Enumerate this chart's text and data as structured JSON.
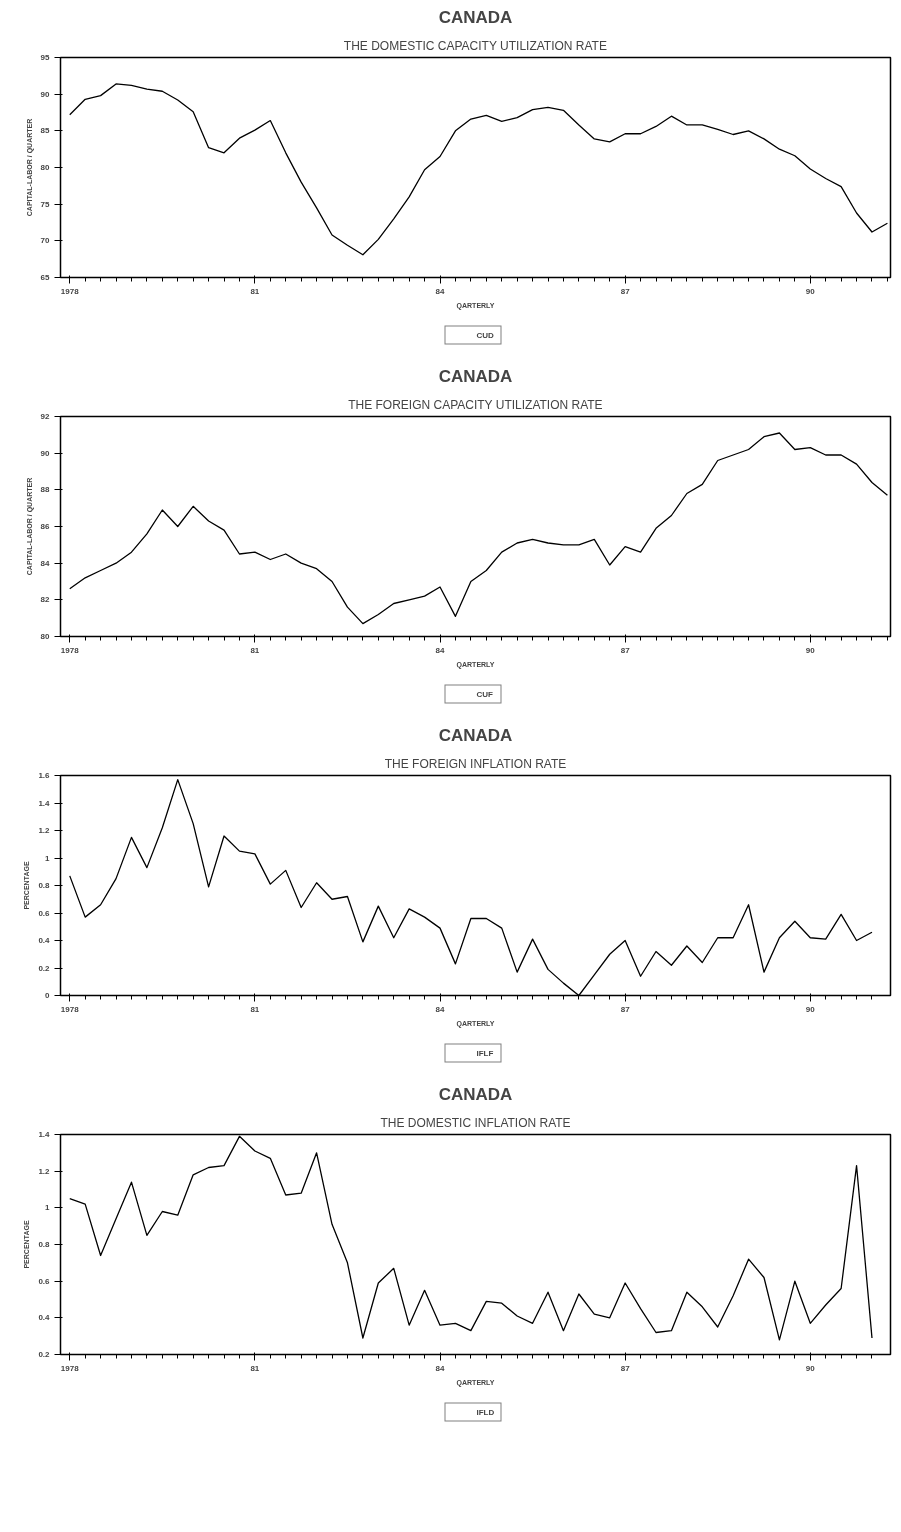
{
  "chart_data": [
    {
      "type": "line",
      "title": "CANADA",
      "subtitle": "THE DOMESTIC CAPACITY UTILIZATION RATE",
      "xlabel": "QARTERLY",
      "ylabel": "CAPITAL-LABOR / QUARTER",
      "legend": "bottom",
      "grid": false,
      "line_style": "solid",
      "marker": "none",
      "x": [
        1978,
        1978.25,
        1978.5,
        1978.75,
        1979,
        1979.25,
        1979.5,
        1979.75,
        1980,
        1980.25,
        1980.5,
        1980.75,
        1981,
        1981.25,
        1981.5,
        1981.75,
        1982,
        1982.25,
        1982.5,
        1982.75,
        1983,
        1983.25,
        1983.5,
        1983.75,
        1984,
        1984.25,
        1984.5,
        1984.75,
        1985,
        1985.25,
        1985.5,
        1985.75,
        1986,
        1986.25,
        1986.5,
        1986.75,
        1987,
        1987.25,
        1987.5,
        1987.75,
        1988,
        1988.25,
        1988.5,
        1988.75,
        1989,
        1989.25,
        1989.5,
        1989.75,
        1990,
        1990.25,
        1990.5,
        1990.75,
        1991,
        1991.25
      ],
      "xlim": [
        1977.85,
        1991.3
      ],
      "xticks": [
        {
          "value": 1978,
          "label": "1978"
        },
        {
          "value": 1981,
          "label": "81"
        },
        {
          "value": 1984,
          "label": "84"
        },
        {
          "value": 1987,
          "label": "87"
        },
        {
          "value": 1990,
          "label": "90"
        }
      ],
      "ylim": [
        65,
        95
      ],
      "yticks": [
        65,
        70,
        75,
        80,
        85,
        90,
        95
      ],
      "series": [
        {
          "name": "CUD",
          "color": "#000000",
          "values": [
            87.2,
            89.3,
            89.8,
            91.4,
            91.2,
            90.7,
            90.4,
            89.2,
            87.6,
            82.7,
            82.0,
            84.0,
            85.1,
            86.4,
            82.0,
            78.0,
            74.5,
            70.8,
            69.4,
            68.1,
            70.2,
            73.0,
            76.0,
            79.7,
            81.5,
            85.0,
            86.6,
            87.1,
            86.3,
            86.8,
            87.9,
            88.2,
            87.8,
            85.8,
            83.9,
            83.5,
            84.6,
            84.6,
            85.6,
            87.0,
            85.8,
            85.8,
            85.2,
            84.5,
            85.0,
            83.9,
            82.5,
            81.6,
            79.8,
            78.5,
            77.4,
            73.8,
            71.2,
            72.4
          ]
        }
      ]
    },
    {
      "type": "line",
      "title": "CANADA",
      "subtitle": "THE FOREIGN CAPACITY UTILIZATION RATE",
      "xlabel": "QARTERLY",
      "ylabel": "CAPITAL-LABOR / QUARTER",
      "legend": "bottom",
      "grid": false,
      "line_style": "solid",
      "marker": "none",
      "x": [
        1978,
        1978.25,
        1978.5,
        1978.75,
        1979,
        1979.25,
        1979.5,
        1979.75,
        1980,
        1980.25,
        1980.5,
        1980.75,
        1981,
        1981.25,
        1981.5,
        1981.75,
        1982,
        1982.25,
        1982.5,
        1982.75,
        1983,
        1983.25,
        1983.5,
        1983.75,
        1984,
        1984.25,
        1984.5,
        1984.75,
        1985,
        1985.25,
        1985.5,
        1985.75,
        1986,
        1986.25,
        1986.5,
        1986.75,
        1987,
        1987.25,
        1987.5,
        1987.75,
        1988,
        1988.25,
        1988.5,
        1988.75,
        1989,
        1989.25,
        1989.5,
        1989.75,
        1990,
        1990.25,
        1990.5,
        1990.75,
        1991,
        1991.25
      ],
      "xlim": [
        1977.85,
        1991.3
      ],
      "xticks": [
        {
          "value": 1978,
          "label": "1978"
        },
        {
          "value": 1981,
          "label": "81"
        },
        {
          "value": 1984,
          "label": "84"
        },
        {
          "value": 1987,
          "label": "87"
        },
        {
          "value": 1990,
          "label": "90"
        }
      ],
      "ylim": [
        80,
        92
      ],
      "yticks": [
        80,
        82,
        84,
        86,
        88,
        90,
        92
      ],
      "series": [
        {
          "name": "CUF",
          "color": "#000000",
          "values": [
            82.6,
            83.2,
            83.6,
            84.0,
            84.6,
            85.6,
            86.9,
            86.0,
            87.1,
            86.3,
            85.8,
            84.5,
            84.6,
            84.2,
            84.5,
            84.0,
            83.7,
            83.0,
            81.6,
            80.7,
            81.2,
            81.8,
            82.0,
            82.2,
            82.7,
            81.1,
            83.0,
            83.6,
            84.6,
            85.1,
            85.3,
            85.1,
            85.0,
            85.0,
            85.3,
            83.9,
            84.9,
            84.6,
            85.9,
            86.6,
            87.8,
            88.3,
            89.6,
            89.9,
            90.2,
            90.9,
            91.1,
            90.2,
            90.3,
            89.9,
            89.9,
            89.4,
            88.4,
            87.7
          ]
        }
      ]
    },
    {
      "type": "line",
      "title": "CANADA",
      "subtitle": "THE FOREIGN INFLATION RATE",
      "xlabel": "QARTERLY",
      "ylabel": "PERCENTAGE",
      "legend": "bottom",
      "grid": false,
      "line_style": "solid",
      "marker": "none",
      "x": [
        1978,
        1978.25,
        1978.5,
        1978.75,
        1979,
        1979.25,
        1979.5,
        1979.75,
        1980,
        1980.25,
        1980.5,
        1980.75,
        1981,
        1981.25,
        1981.5,
        1981.75,
        1982,
        1982.25,
        1982.5,
        1982.75,
        1983,
        1983.25,
        1983.5,
        1983.75,
        1984,
        1984.25,
        1984.5,
        1984.75,
        1985,
        1985.25,
        1985.5,
        1985.75,
        1986,
        1986.25,
        1986.5,
        1986.75,
        1987,
        1987.25,
        1987.5,
        1987.75,
        1988,
        1988.25,
        1988.5,
        1988.75,
        1989,
        1989.25,
        1989.5,
        1989.75,
        1990,
        1990.25,
        1990.5,
        1990.75,
        1991
      ],
      "xlim": [
        1977.85,
        1991.3
      ],
      "xticks": [
        {
          "value": 1978,
          "label": "1978"
        },
        {
          "value": 1981,
          "label": "81"
        },
        {
          "value": 1984,
          "label": "84"
        },
        {
          "value": 1987,
          "label": "87"
        },
        {
          "value": 1990,
          "label": "90"
        }
      ],
      "ylim": [
        0,
        1.6
      ],
      "yticks": [
        0,
        0.2,
        0.4,
        0.6,
        0.8,
        1,
        1.2,
        1.4,
        1.6
      ],
      "series": [
        {
          "name": "IFLF",
          "color": "#000000",
          "values": [
            0.87,
            0.57,
            0.66,
            0.85,
            1.15,
            0.93,
            1.22,
            1.57,
            1.25,
            0.79,
            1.16,
            1.05,
            1.03,
            0.81,
            0.91,
            0.64,
            0.82,
            0.7,
            0.72,
            0.39,
            0.65,
            0.42,
            0.63,
            0.57,
            0.49,
            0.23,
            0.56,
            0.56,
            0.49,
            0.17,
            0.41,
            0.19,
            0.09,
            0.0,
            0.15,
            0.3,
            0.4,
            0.14,
            0.32,
            0.22,
            0.36,
            0.24,
            0.42,
            0.42,
            0.66,
            0.17,
            0.42,
            0.54,
            0.42,
            0.41,
            0.59,
            0.4,
            0.46
          ]
        }
      ]
    },
    {
      "type": "line",
      "title": "CANADA",
      "subtitle": "THE DOMESTIC INFLATION RATE",
      "xlabel": "QARTERLY",
      "ylabel": "PERCENTAGE",
      "legend": "bottom",
      "grid": false,
      "line_style": "solid",
      "marker": "none",
      "x": [
        1978,
        1978.25,
        1978.5,
        1978.75,
        1979,
        1979.25,
        1979.5,
        1979.75,
        1980,
        1980.25,
        1980.5,
        1980.75,
        1981,
        1981.25,
        1981.5,
        1981.75,
        1982,
        1982.25,
        1982.5,
        1982.75,
        1983,
        1983.25,
        1983.5,
        1983.75,
        1984,
        1984.25,
        1984.5,
        1984.75,
        1985,
        1985.25,
        1985.5,
        1985.75,
        1986,
        1986.25,
        1986.5,
        1986.75,
        1987,
        1987.25,
        1987.5,
        1987.75,
        1988,
        1988.25,
        1988.5,
        1988.75,
        1989,
        1989.25,
        1989.5,
        1989.75,
        1990,
        1990.25,
        1990.5,
        1990.75,
        1991
      ],
      "xlim": [
        1977.85,
        1991.3
      ],
      "xticks": [
        {
          "value": 1978,
          "label": "1978"
        },
        {
          "value": 1981,
          "label": "81"
        },
        {
          "value": 1984,
          "label": "84"
        },
        {
          "value": 1987,
          "label": "87"
        },
        {
          "value": 1990,
          "label": "90"
        }
      ],
      "ylim": [
        0.2,
        1.4
      ],
      "yticks": [
        0.2,
        0.4,
        0.6,
        0.8,
        1,
        1.2,
        1.4
      ],
      "series": [
        {
          "name": "IFLD",
          "color": "#000000",
          "values": [
            1.05,
            1.02,
            0.74,
            0.94,
            1.14,
            0.85,
            0.98,
            0.96,
            1.18,
            1.22,
            1.23,
            1.39,
            1.31,
            1.27,
            1.07,
            1.08,
            1.3,
            0.91,
            0.7,
            0.29,
            0.59,
            0.67,
            0.36,
            0.55,
            0.36,
            0.37,
            0.33,
            0.49,
            0.48,
            0.41,
            0.37,
            0.54,
            0.33,
            0.53,
            0.42,
            0.4,
            0.59,
            0.45,
            0.32,
            0.33,
            0.54,
            0.46,
            0.35,
            0.52,
            0.72,
            0.62,
            0.28,
            0.6,
            0.37,
            0.47,
            0.56,
            1.23,
            0.29
          ]
        }
      ]
    }
  ]
}
